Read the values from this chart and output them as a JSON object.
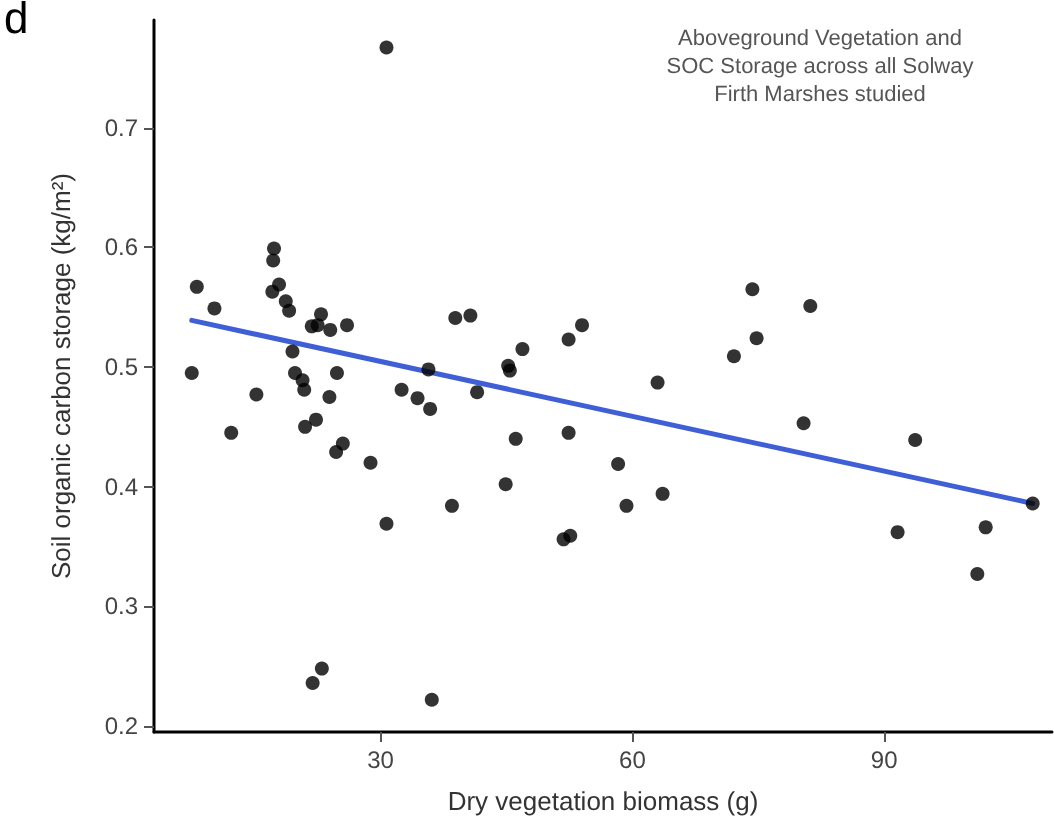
{
  "chart_data": {
    "type": "scatter",
    "title": "Aboveground Vegetation and\nSOC Storage across all Solway\nFirth Marshes studied",
    "xlabel": "Dry vegetation biomass (g)",
    "ylabel": "Soil organic carbon storage (kg/m²)",
    "annotations": [
      "d"
    ],
    "xlim": [
      3,
      110
    ],
    "ylim": [
      0.195,
      0.79
    ],
    "xticks": [
      30,
      60,
      90
    ],
    "yticks": [
      0.2,
      0.3,
      0.4,
      0.5,
      0.6,
      0.7
    ],
    "grid": false,
    "marker": "circle",
    "series": [
      {
        "color": "#000000",
        "x": [
          7.5,
          8.1,
          10.2,
          12.2,
          15.2,
          17.3,
          17.2,
          17.1,
          17.9,
          18.7,
          19.1,
          19.5,
          19.8,
          20.7,
          20.9,
          21.0,
          22.3,
          21.8,
          22.9,
          22.5,
          24.0,
          26.0,
          24.8,
          23.9,
          24.7,
          25.5,
          28.8,
          30.7,
          30.7,
          32.5,
          34.4,
          35.9,
          35.7,
          36.1,
          21.9,
          23.0,
          38.5,
          38.9,
          40.7,
          41.5,
          44.9,
          45.2,
          45.4,
          46.9,
          46.1,
          52.4,
          54.0,
          52.4,
          51.8,
          52.6,
          58.3,
          59.3,
          63.0,
          63.6,
          72.1,
          74.3,
          74.8,
          81.2,
          80.4,
          91.6,
          93.7,
          101.1,
          102.1,
          107.7
        ],
        "values": [
          0.495,
          0.567,
          0.549,
          0.445,
          0.477,
          0.599,
          0.589,
          0.563,
          0.569,
          0.555,
          0.547,
          0.513,
          0.495,
          0.489,
          0.481,
          0.45,
          0.456,
          0.534,
          0.544,
          0.535,
          0.531,
          0.535,
          0.495,
          0.475,
          0.429,
          0.436,
          0.42,
          0.369,
          0.767,
          0.481,
          0.474,
          0.465,
          0.498,
          0.222,
          0.236,
          0.248,
          0.384,
          0.541,
          0.543,
          0.479,
          0.402,
          0.501,
          0.497,
          0.515,
          0.44,
          0.523,
          0.535,
          0.445,
          0.356,
          0.359,
          0.419,
          0.384,
          0.487,
          0.394,
          0.509,
          0.565,
          0.524,
          0.551,
          0.453,
          0.362,
          0.439,
          0.327,
          0.366,
          0.386
        ]
      },
      {
        "type": "line",
        "color": "#3f5fd6",
        "marker": "none",
        "x": [
          7.5,
          107.7
        ],
        "values": [
          0.539,
          0.386
        ]
      }
    ]
  }
}
